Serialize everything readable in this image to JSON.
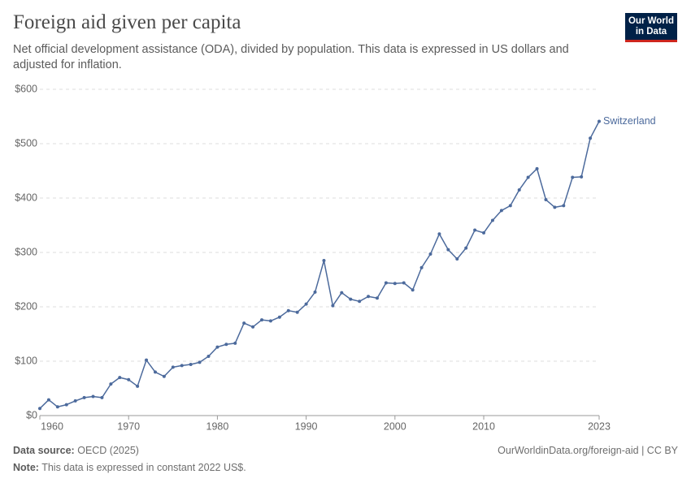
{
  "chart_data": {
    "type": "line",
    "title": "Foreign aid given per capita",
    "subtitle": "Net official development assistance (ODA), divided by population. This data is expressed in US dollars and adjusted for inflation.",
    "logo": [
      "Our World",
      "in Data"
    ],
    "source_label": "Data source:",
    "source": "OECD (2025)",
    "url": "OurWorldinData.org/foreign-aid | CC BY",
    "note_label": "Note:",
    "note": "This data is expressed in constant 2022 US$.",
    "x": [
      1960,
      1961,
      1962,
      1963,
      1964,
      1965,
      1966,
      1967,
      1968,
      1969,
      1970,
      1971,
      1972,
      1973,
      1974,
      1975,
      1976,
      1977,
      1978,
      1979,
      1980,
      1981,
      1982,
      1983,
      1984,
      1985,
      1986,
      1987,
      1988,
      1989,
      1990,
      1991,
      1992,
      1993,
      1994,
      1995,
      1996,
      1997,
      1998,
      1999,
      2000,
      2001,
      2002,
      2003,
      2004,
      2005,
      2006,
      2007,
      2008,
      2009,
      2010,
      2011,
      2012,
      2013,
      2014,
      2015,
      2016,
      2017,
      2018,
      2019,
      2020,
      2021,
      2022,
      2023
    ],
    "series": [
      {
        "name": "Switzerland",
        "color": "#4c6a9c",
        "values": [
          13,
          29,
          16,
          20,
          27,
          33,
          35,
          33,
          58,
          70,
          66,
          54,
          102,
          80,
          72,
          89,
          92,
          94,
          98,
          109,
          126,
          131,
          133,
          170,
          163,
          176,
          174,
          181,
          193,
          190,
          205,
          227,
          285,
          202,
          226,
          214,
          210,
          219,
          216,
          244,
          243,
          244,
          231,
          272,
          297,
          334,
          305,
          288,
          308,
          341,
          336,
          359,
          377,
          386,
          415,
          438,
          454,
          397,
          383,
          386,
          438,
          439,
          510,
          541
        ]
      }
    ],
    "xlim": [
      1960,
      2023
    ],
    "xticks": [
      1960,
      1970,
      1980,
      1990,
      2000,
      2010,
      2023
    ],
    "ylim": [
      0,
      600
    ],
    "yticks": [
      {
        "value": 0,
        "label": "$0"
      },
      {
        "value": 100,
        "label": "$100"
      },
      {
        "value": 200,
        "label": "$200"
      },
      {
        "value": 300,
        "label": "$300"
      },
      {
        "value": 400,
        "label": "$400"
      },
      {
        "value": 500,
        "label": "$500"
      },
      {
        "value": 600,
        "label": "$600"
      }
    ],
    "grid": true
  }
}
